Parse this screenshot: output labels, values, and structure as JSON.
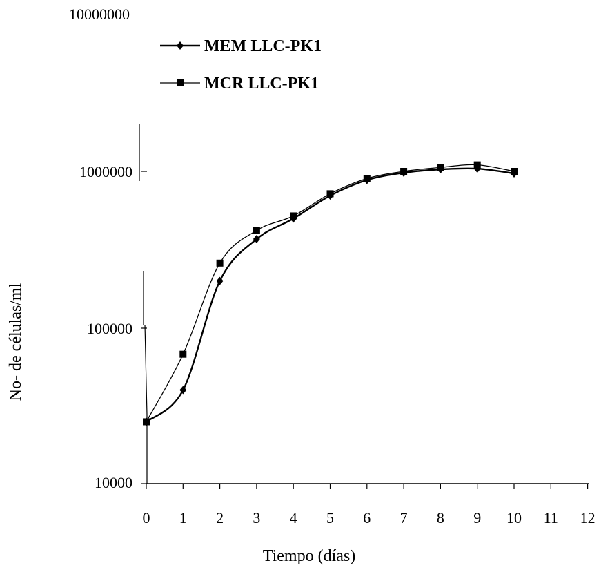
{
  "chart_data": {
    "type": "line",
    "xlabel": "Tiempo (días)",
    "ylabel": "No- de células/ml",
    "y_scale": "log",
    "ylim": [
      10000,
      10000000
    ],
    "xlim": [
      0,
      12
    ],
    "x_ticks": [
      "0",
      "1",
      "2",
      "3",
      "4",
      "5",
      "6",
      "7",
      "8",
      "9",
      "10",
      "11",
      "12"
    ],
    "y_ticks": [
      "10000",
      "100000",
      "1000000",
      "10000000"
    ],
    "x": [
      0,
      1,
      2,
      3,
      4,
      5,
      6,
      7,
      8,
      9,
      10
    ],
    "legend_position": "top-left",
    "series": [
      {
        "name": "MEM LLC-PK1",
        "marker": "diamond",
        "values": [
          25000,
          40000,
          200000,
          370000,
          500000,
          700000,
          880000,
          980000,
          1030000,
          1040000,
          970000
        ]
      },
      {
        "name": "MCR LLC-PK1",
        "marker": "square",
        "values": [
          25000,
          68000,
          260000,
          420000,
          520000,
          720000,
          900000,
          1000000,
          1060000,
          1100000,
          1000000
        ]
      }
    ]
  }
}
